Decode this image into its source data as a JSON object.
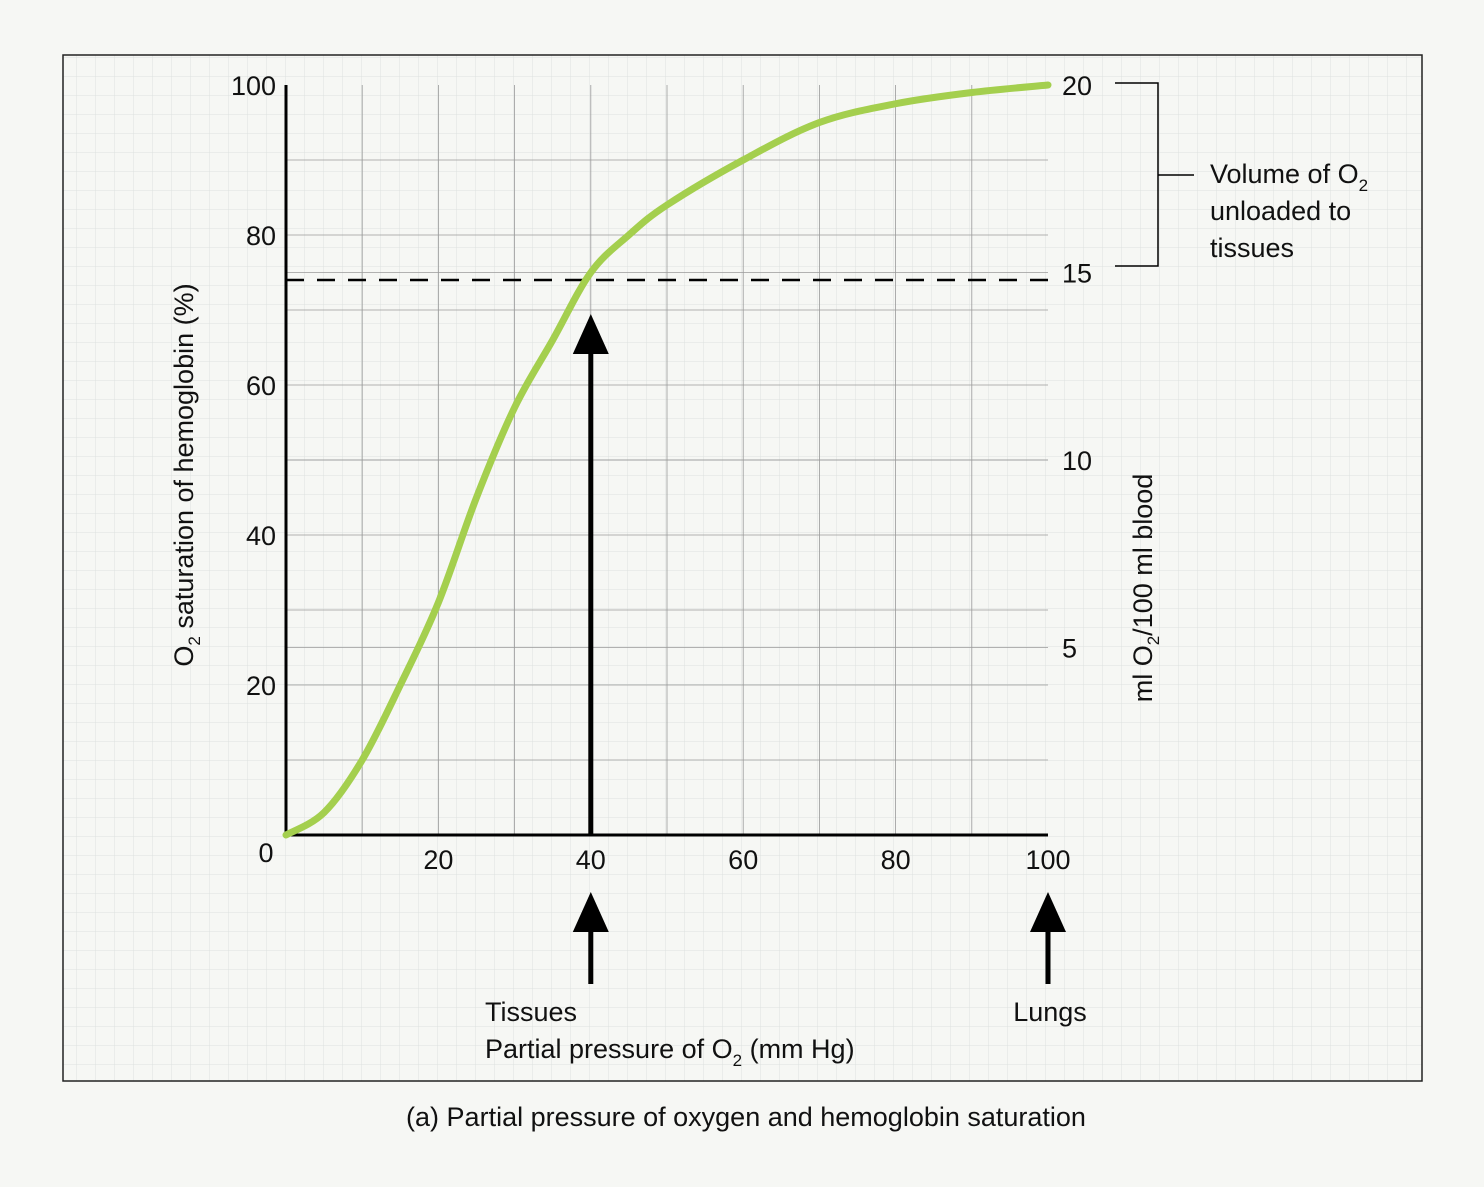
{
  "caption": "(a) Partial pressure of oxygen and hemoglobin saturation",
  "chart_data": {
    "type": "line",
    "x": [
      0,
      5,
      10,
      15,
      20,
      25,
      30,
      35,
      40,
      45,
      50,
      60,
      70,
      80,
      90,
      100
    ],
    "series": [
      {
        "values": [
          0,
          3,
          10,
          20,
          31,
          45,
          57,
          66,
          75,
          80,
          84,
          90,
          95,
          97.5,
          99,
          100
        ]
      }
    ],
    "xlim": [
      0,
      100
    ],
    "ylim": [
      0,
      100
    ],
    "y2lim": [
      0,
      20
    ],
    "x_ticks": [
      20,
      40,
      60,
      80,
      100
    ],
    "x_tick_labels": [
      "20",
      "40",
      "60",
      "80",
      "100"
    ],
    "origin_label": "0",
    "y_ticks": [
      20,
      40,
      60,
      80,
      100
    ],
    "y_tick_labels": [
      "20",
      "40",
      "60",
      "80",
      "100"
    ],
    "y2_ticks": [
      5,
      10,
      15,
      20
    ],
    "y2_tick_labels": [
      "5",
      "10",
      "15",
      "20"
    ],
    "xlabel": {
      "main": "Partial pressure of O",
      "sub": "2",
      "suffix": " (mm Hg)"
    },
    "ylabel": {
      "main": "O",
      "sub": "2",
      "suffix": " saturation of hemoglobin (%)"
    },
    "y2label": {
      "main": "ml O",
      "sub": "2",
      "suffix": "/100 ml blood"
    },
    "dashed_reference_y": 74,
    "arrow_tissues_x": 40,
    "arrow_lungs_x": 100,
    "annotations": {
      "tissues": "Tissues",
      "lungs": "Lungs",
      "volume_line1_main": "Volume of O",
      "volume_line1_sub": "2",
      "volume_line2": "unloaded to",
      "volume_line3": "tissues"
    },
    "grid": true,
    "colors": {
      "curve": "#a4cf4e",
      "axis": "#000000",
      "grid": "#9a9a9a",
      "fine_grid": "#d9dedb",
      "background": "#f6f7f4"
    }
  }
}
